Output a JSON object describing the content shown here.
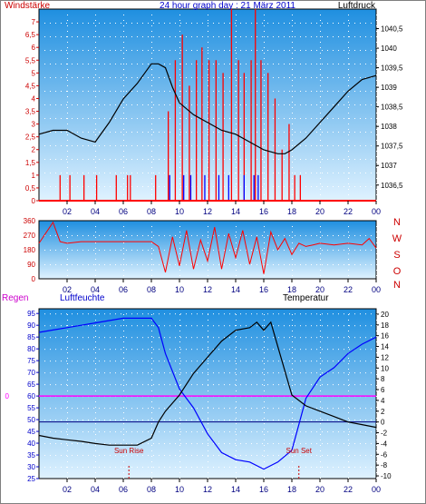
{
  "colors": {
    "panel_bg_top": "#1f8fe0",
    "panel_bg_bottom": "#dff2ff",
    "wind_bar": "#ff0000",
    "gust_bar": "#0000ff",
    "pressure": "#000000",
    "direction": "#ff0000",
    "humidity": "#0000ff",
    "temperature": "#000000",
    "rain_zero": "#ff00ff",
    "zero_temp": "#000080",
    "sun": "#cc0000",
    "title": "#0000cc"
  },
  "chart_data": [
    {
      "type": "bar+line",
      "panel": "wind-pressure",
      "title": "24 hour graph day : 21 März 2011",
      "left_label": "Windstärke",
      "right_label": "Luftdruck",
      "x_ticks": [
        "02",
        "04",
        "06",
        "08",
        "10",
        "12",
        "14",
        "16",
        "18",
        "20",
        "22",
        "00"
      ],
      "y_left_ticks": [
        "0",
        "0,5",
        "1",
        "1,5",
        "2",
        "2,5",
        "3",
        "3,5",
        "4",
        "4,5",
        "5",
        "5,5",
        "6",
        "6,5",
        "7"
      ],
      "ylim_left": [
        0,
        7.5
      ],
      "y_right_ticks": [
        "1036,5",
        "1037",
        "1037,5",
        "1038",
        "1038,5",
        "1039",
        "1039,5",
        "1040",
        "1040,5"
      ],
      "ylim_right": [
        1036.1,
        1041.0
      ],
      "wind_speed": {
        "hours": [
          1.5,
          2.2,
          3.2,
          4.1,
          5.5,
          6.3,
          6.5,
          8.3,
          9.2,
          9.7,
          10.2,
          10.7,
          11.2,
          11.6,
          12.1,
          12.6,
          13.1,
          13.7,
          14.2,
          14.6,
          15.1,
          15.4,
          15.8,
          16.3,
          16.8,
          17.3,
          17.8,
          18.2,
          18.6
        ],
        "values": [
          1,
          1,
          1,
          1,
          1,
          1,
          1,
          1,
          3.5,
          5.5,
          6.5,
          4.5,
          5.5,
          6,
          5.5,
          5.5,
          5,
          7.5,
          5.5,
          5,
          5.5,
          7.5,
          5.5,
          5,
          4,
          2,
          3,
          1,
          1
        ]
      },
      "wind_gust": {
        "hours": [
          9.3,
          10.3,
          10.8,
          11.8,
          12.8,
          13.5,
          14.6,
          15.3,
          15.6
        ],
        "values": [
          1,
          1,
          1,
          1,
          1,
          1,
          1,
          1,
          1
        ]
      },
      "pressure": {
        "hours": [
          0,
          1,
          2,
          3,
          4,
          5,
          6,
          7,
          8,
          8.5,
          9,
          9.5,
          10,
          11,
          12,
          13,
          14,
          15,
          16,
          17,
          17.5,
          18,
          19,
          20,
          21,
          22,
          23,
          24
        ],
        "values": [
          1037.8,
          1037.9,
          1037.9,
          1037.7,
          1037.6,
          1038.1,
          1038.7,
          1039.1,
          1039.6,
          1039.6,
          1039.5,
          1039.0,
          1038.6,
          1038.3,
          1038.1,
          1037.9,
          1037.8,
          1037.6,
          1037.4,
          1037.3,
          1037.3,
          1037.4,
          1037.7,
          1038.1,
          1038.5,
          1038.9,
          1039.2,
          1039.3
        ]
      }
    },
    {
      "type": "line",
      "panel": "wind-direction",
      "x_ticks": [
        "02",
        "04",
        "06",
        "08",
        "10",
        "12",
        "14",
        "16",
        "18",
        "20",
        "22",
        "00"
      ],
      "y_ticks": [
        "0",
        "90",
        "180",
        "270",
        "360"
      ],
      "ylim": [
        0,
        360
      ],
      "compass_labels": [
        "N",
        "W",
        "S",
        "O",
        "N"
      ],
      "hours": [
        0,
        1,
        1.5,
        2,
        3,
        4,
        5,
        6,
        7,
        8,
        8.5,
        9,
        9.5,
        10,
        10.5,
        11,
        11.5,
        12,
        12.5,
        13,
        13.5,
        14,
        14.5,
        15,
        15.5,
        16,
        16.5,
        17,
        17.5,
        18,
        18.5,
        19,
        19.5,
        20,
        21,
        22,
        23,
        23.5,
        24
      ],
      "values": [
        220,
        350,
        230,
        220,
        230,
        230,
        230,
        230,
        230,
        230,
        200,
        40,
        260,
        80,
        300,
        60,
        240,
        110,
        320,
        60,
        280,
        130,
        300,
        90,
        260,
        30,
        290,
        180,
        250,
        150,
        220,
        200,
        210,
        220,
        210,
        220,
        210,
        250,
        190
      ]
    },
    {
      "type": "line",
      "panel": "humidity-temperature",
      "left_label": "Regen",
      "left2_label": "Luftfeuchte",
      "right_label": "Temperatur",
      "x_ticks": [
        "02",
        "04",
        "06",
        "08",
        "10",
        "12",
        "14",
        "16",
        "18",
        "20",
        "22",
        "00"
      ],
      "humidity_ticks": [
        "25",
        "30",
        "35",
        "40",
        "45",
        "50",
        "55",
        "60",
        "65",
        "70",
        "75",
        "80",
        "85",
        "90",
        "95"
      ],
      "humidity_lim": [
        25,
        97
      ],
      "rain_ticks": [
        "0"
      ],
      "temp_ticks": [
        "-10",
        "-8",
        "-6",
        "-4",
        "-2",
        "0",
        "2",
        "4",
        "6",
        "8",
        "10",
        "12",
        "14",
        "16",
        "18",
        "20"
      ],
      "temp_lim": [
        -10.5,
        21
      ],
      "humidity": {
        "hours": [
          0,
          1,
          2,
          3,
          4,
          5,
          6,
          7,
          8,
          8.5,
          9,
          10,
          11,
          12,
          13,
          14,
          15,
          16,
          17,
          18,
          18.5,
          19,
          20,
          21,
          22,
          23,
          24
        ],
        "values": [
          87,
          88,
          89,
          90,
          91,
          92,
          93,
          93,
          93,
          89,
          78,
          63,
          55,
          44,
          36,
          33,
          32,
          29,
          32,
          37,
          48,
          59,
          68,
          72,
          78,
          82,
          85
        ]
      },
      "temperature": {
        "hours": [
          0,
          1,
          2,
          3,
          4,
          5,
          6,
          7,
          8,
          8.5,
          9,
          10,
          11,
          12,
          13,
          14,
          15,
          15.5,
          16,
          16.5,
          17,
          18,
          19,
          20,
          21,
          22,
          23,
          24
        ],
        "values": [
          -2.5,
          -3,
          -3.3,
          -3.6,
          -4,
          -4.3,
          -4.3,
          -4.3,
          -3,
          0,
          2,
          5,
          9,
          12,
          15,
          17,
          17.5,
          18.5,
          17,
          18.5,
          14,
          5,
          3,
          2,
          1,
          0,
          -0.5,
          -1
        ]
      },
      "sun_rise": {
        "label": "Sun Rise",
        "hour": 6.4
      },
      "sun_set": {
        "label": "Sun Set",
        "hour": 18.5
      }
    }
  ]
}
